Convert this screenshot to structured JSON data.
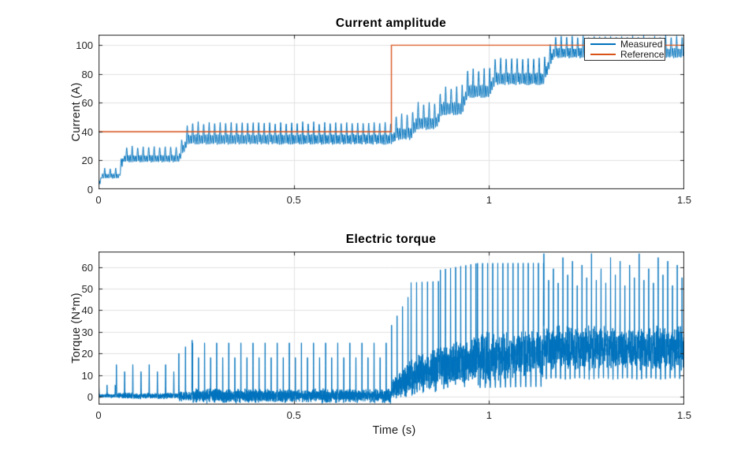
{
  "figure": {
    "background": "#ffffff",
    "axis_color": "#262626",
    "grid_color": "#e2e2e2",
    "tick_label_color": "#262626",
    "title_color": "#000000"
  },
  "chart_data": [
    {
      "type": "line",
      "title": "Current amplitude",
      "xlabel": "",
      "ylabel": "Current (A)",
      "xlim": [
        0,
        1.5
      ],
      "ylim": [
        0,
        107.3
      ],
      "xticks": [
        0,
        0.5,
        1,
        1.5
      ],
      "xtick_labels": [
        "0",
        "0.5",
        "1",
        "1.5"
      ],
      "yticks": [
        0,
        20,
        40,
        60,
        80,
        100
      ],
      "ytick_labels": [
        "0",
        "20",
        "40",
        "60",
        "80",
        "100"
      ],
      "grid": true,
      "legend": {
        "position": "northeast",
        "entries": [
          "Measured",
          "Reference"
        ]
      },
      "series": [
        {
          "name": "Measured",
          "color": "#0072BD",
          "style": "oscillating_band",
          "osc_freq_hz": 71,
          "description": "stator current amplitude oscillating inside a rising staircase envelope",
          "envelope": [
            {
              "t": [
                0,
                0.008
              ],
              "lo": [
                0,
                7
              ],
              "hi": [
                3,
                15
              ]
            },
            {
              "t": [
                0.008,
                0.053
              ],
              "lo": [
                7,
                7
              ],
              "hi": [
                15,
                15
              ]
            },
            {
              "t": [
                0.053,
                0.064
              ],
              "lo": [
                7,
                18
              ],
              "hi": [
                15,
                30
              ]
            },
            {
              "t": [
                0.064,
                0.205
              ],
              "lo": [
                18,
                18
              ],
              "hi": [
                30,
                30
              ]
            },
            {
              "t": [
                0.205,
                0.23
              ],
              "lo": [
                18,
                30
              ],
              "hi": [
                30,
                47
              ]
            },
            {
              "t": [
                0.23,
                0.75
              ],
              "lo": [
                30,
                30
              ],
              "hi": [
                47,
                47
              ]
            },
            {
              "t": [
                0.75,
                0.765
              ],
              "lo": [
                30,
                33
              ],
              "hi": [
                47,
                53
              ]
            },
            {
              "t": [
                0.765,
                0.8
              ],
              "lo": [
                33,
                33
              ],
              "hi": [
                53,
                53
              ]
            },
            {
              "t": [
                0.8,
                0.815
              ],
              "lo": [
                33,
                40
              ],
              "hi": [
                53,
                61
              ]
            },
            {
              "t": [
                0.815,
                0.865
              ],
              "lo": [
                40,
                40
              ],
              "hi": [
                61,
                61
              ]
            },
            {
              "t": [
                0.865,
                0.88
              ],
              "lo": [
                40,
                50
              ],
              "hi": [
                61,
                72
              ]
            },
            {
              "t": [
                0.88,
                0.93
              ],
              "lo": [
                50,
                50
              ],
              "hi": [
                72,
                72
              ]
            },
            {
              "t": [
                0.93,
                0.945
              ],
              "lo": [
                50,
                62
              ],
              "hi": [
                72,
                84
              ]
            },
            {
              "t": [
                0.945,
                1.0
              ],
              "lo": [
                62,
                62
              ],
              "hi": [
                84,
                84
              ]
            },
            {
              "t": [
                1.0,
                1.015
              ],
              "lo": [
                62,
                71
              ],
              "hi": [
                84,
                92
              ]
            },
            {
              "t": [
                1.015,
                1.14
              ],
              "lo": [
                71,
                71
              ],
              "hi": [
                92,
                92
              ]
            },
            {
              "t": [
                1.14,
                1.165
              ],
              "lo": [
                71,
                90
              ],
              "hi": [
                92,
                107
              ]
            },
            {
              "t": [
                1.165,
                1.5
              ],
              "lo": [
                90,
                90
              ],
              "hi": [
                107,
                107
              ]
            }
          ]
        },
        {
          "name": "Reference",
          "color": "#D95319",
          "style": "step",
          "points": [
            [
              0,
              40
            ],
            [
              0.75,
              40
            ],
            [
              0.75,
              100
            ],
            [
              1.5,
              100
            ]
          ]
        }
      ]
    },
    {
      "type": "line",
      "title": "Electric torque",
      "xlabel": "Time (s)",
      "ylabel": "Torque (N*m)",
      "xlim": [
        0,
        1.5
      ],
      "ylim": [
        -3.5,
        67.1
      ],
      "xticks": [
        0,
        0.5,
        1,
        1.5
      ],
      "xtick_labels": [
        "0",
        "0.5",
        "1",
        "1.5"
      ],
      "yticks": [
        0,
        10,
        20,
        30,
        40,
        50,
        60
      ],
      "ytick_labels": [
        "0",
        "10",
        "20",
        "30",
        "40",
        "50",
        "60"
      ],
      "grid": true,
      "series": [
        {
          "name": "Electric torque",
          "color": "#0072BD",
          "style": "spiky_band",
          "band_freq_hz": 600,
          "description": "torque ripple: dense band with periodic tall spikes, amplitude grows after each current step",
          "segments": [
            {
              "t": [
                0,
                0.045
              ],
              "band_lo": [
                -0.5,
                -0.5
              ],
              "band_hi": [
                1.5,
                1.5
              ],
              "spike": [
                6,
                6
              ],
              "period": 0.021
            },
            {
              "t": [
                0.045,
                0.205
              ],
              "band_lo": [
                -1,
                -1
              ],
              "band_hi": [
                2,
                2
              ],
              "spike": [
                16.5,
                16.5
              ],
              "spike2": 0.78,
              "period": 0.021
            },
            {
              "t": [
                0.205,
                0.24
              ],
              "band_lo": [
                -2,
                -2
              ],
              "band_hi": [
                2.5,
                2.5
              ],
              "spike": [
                22,
                29
              ],
              "period": 0.017
            },
            {
              "t": [
                0.24,
                0.75
              ],
              "band_lo": [
                -3,
                -3
              ],
              "band_hi": [
                4,
                4
              ],
              "spike": [
                30,
                30
              ],
              "spike2": 0.72,
              "period": 0.0155
            },
            {
              "t": [
                0.75,
                0.8
              ],
              "band_lo": [
                -2,
                0
              ],
              "band_hi": [
                8,
                18
              ],
              "spike": [
                36,
                52
              ],
              "period": 0.014
            },
            {
              "t": [
                0.8,
                0.875
              ],
              "band_lo": [
                0,
                2
              ],
              "band_hi": [
                18,
                24
              ],
              "spike": [
                57,
                57
              ],
              "period": 0.014
            },
            {
              "t": [
                0.875,
                0.97
              ],
              "band_lo": [
                2,
                5
              ],
              "band_hi": [
                24,
                30
              ],
              "spike": [
                60,
                63
              ],
              "period": 0.013
            },
            {
              "t": [
                0.97,
                1.14
              ],
              "band_lo": [
                5,
                9
              ],
              "band_hi": [
                30,
                32
              ],
              "spike": [
                63,
                63
              ],
              "downspike": [
                4,
                4
              ],
              "period": 0.013
            },
            {
              "t": [
                1.14,
                1.5
              ],
              "band_lo": [
                12,
                12
              ],
              "band_hi": [
                33,
                33
              ],
              "spike": [
                67,
                67
              ],
              "spike2": 0.85,
              "downspike": [
                8,
                8
              ],
              "period": 0.0122
            }
          ]
        }
      ]
    }
  ]
}
